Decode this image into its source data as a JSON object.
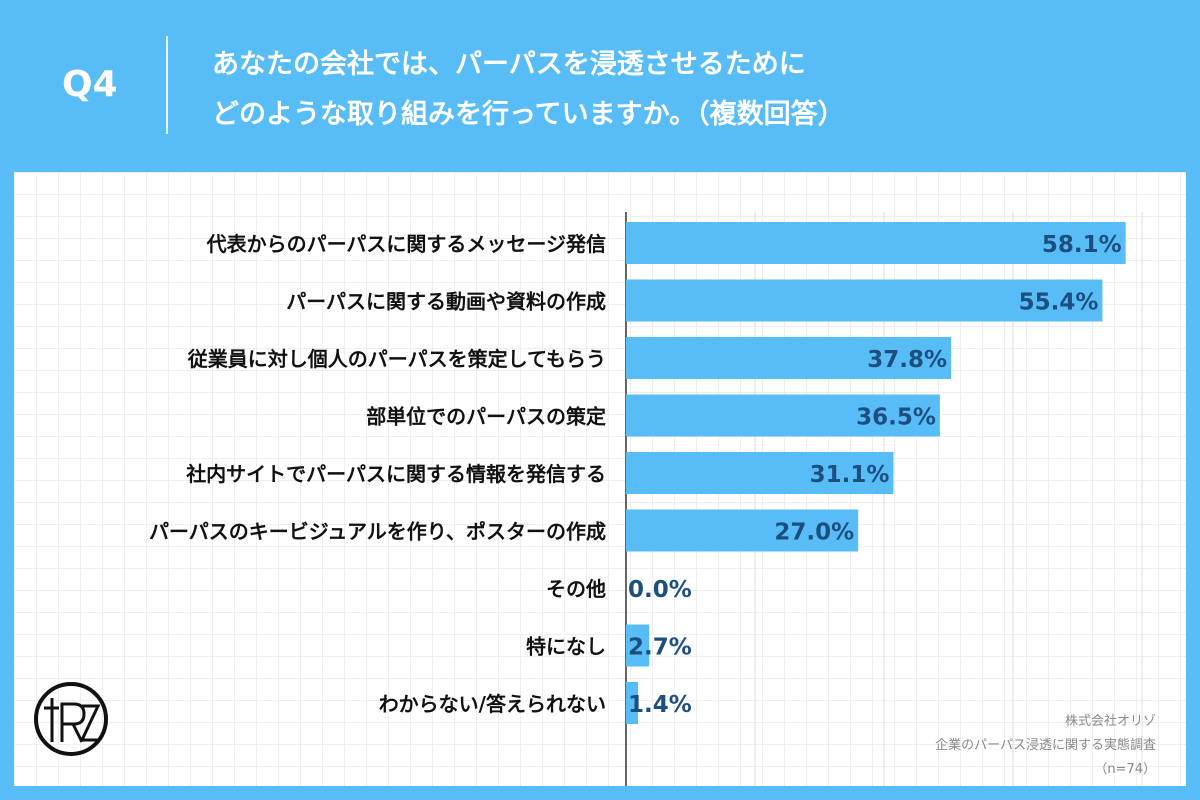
{
  "header": {
    "question_number": "Q4",
    "title_line1": "あなたの会社では、パーパスを浸透させるために",
    "title_line2": "どのような取り組みを行っていますか。（複数回答）"
  },
  "chart_data": {
    "type": "bar",
    "orientation": "horizontal",
    "categories": [
      "代表からのパーパスに関するメッセージ発信",
      "パーパスに関する動画や資料の作成",
      "従業員に対し個人のパーパスを策定してもらう",
      "部単位でのパーパスの策定",
      "社内サイトでパーパスに関する情報を発信する",
      "パーパスのキービジュアルを作り、ポスターの作成",
      "その他",
      "特になし",
      "わからない/答えられない"
    ],
    "values": [
      58.1,
      55.4,
      37.8,
      36.5,
      31.1,
      27.0,
      0.0,
      2.7,
      1.4
    ],
    "value_labels": [
      "58.1%",
      "55.4%",
      "37.8%",
      "36.5%",
      "31.1%",
      "27.0%",
      "0.0%",
      "2.7%",
      "1.4%"
    ],
    "xlim": [
      0,
      60
    ],
    "grid": true,
    "bar_color": "#58bdf6",
    "label_color": "#1c4f80"
  },
  "footer": {
    "company": "株式会社オリゾ",
    "survey": "企業のパーパス浸透に関する実態調査",
    "sample": "（n=74）"
  },
  "logo": {
    "icon": "orizo-logo-icon",
    "text": "RZ"
  }
}
